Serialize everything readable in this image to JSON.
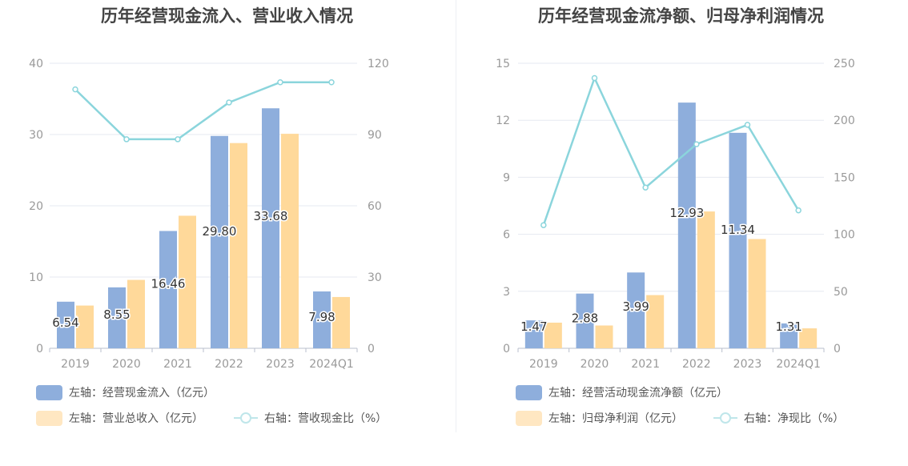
{
  "charts": [
    {
      "title": "历年经营现金流入、营业收入情况",
      "legend": {
        "bar1": "左轴：经营现金流入（亿元）",
        "bar2": "左轴：营业总收入（亿元）",
        "line": "右轴：营收现金比（%）"
      }
    },
    {
      "title": "历年经营现金流净额、归母净利润情况",
      "legend": {
        "bar1": "左轴：经营活动现金流净额（亿元）",
        "bar2": "左轴：归母净利润（亿元）",
        "line": "右轴：净现比（%）"
      }
    }
  ],
  "colors": {
    "bar1": "#8eaedc",
    "bar2": "#ffd99a",
    "line": "#8bd5dc",
    "grid": "#e6e9f0",
    "axis_text": "#999999"
  },
  "chart_data": [
    {
      "type": "bar",
      "title": "历年经营现金流入、营业收入情况",
      "categories": [
        "2019",
        "2020",
        "2021",
        "2022",
        "2023",
        "2024Q1"
      ],
      "series": [
        {
          "name": "左轴：经营现金流入（亿元）",
          "axis": "left",
          "kind": "bar",
          "values": [
            6.54,
            8.55,
            16.46,
            29.8,
            33.68,
            7.98
          ],
          "labels": [
            "6.54",
            "8.55",
            "16.46",
            "29.80",
            "33.68",
            "7.98"
          ]
        },
        {
          "name": "左轴：营业总收入（亿元）",
          "axis": "left",
          "kind": "bar",
          "values": [
            6.0,
            9.6,
            18.6,
            28.8,
            30.1,
            7.2
          ]
        },
        {
          "name": "右轴：营收现金比（%）",
          "axis": "right",
          "kind": "line",
          "values": [
            109,
            88,
            88,
            103.5,
            112,
            112
          ]
        }
      ],
      "left_axis": {
        "min": 0,
        "max": 40,
        "ticks": [
          0,
          10,
          20,
          30,
          40
        ]
      },
      "right_axis": {
        "min": 0,
        "max": 120,
        "ticks": [
          0,
          30,
          60,
          90,
          120
        ]
      },
      "grid": true,
      "legend_position": "bottom-left"
    },
    {
      "type": "bar",
      "title": "历年经营现金流净额、归母净利润情况",
      "categories": [
        "2019",
        "2020",
        "2021",
        "2022",
        "2023",
        "2024Q1"
      ],
      "series": [
        {
          "name": "左轴：经营活动现金流净额（亿元）",
          "axis": "left",
          "kind": "bar",
          "values": [
            1.47,
            2.88,
            3.99,
            12.93,
            11.34,
            1.31
          ],
          "labels": [
            "1.47",
            "2.88",
            "3.99",
            "12.93",
            "11.34",
            "1.31"
          ]
        },
        {
          "name": "左轴：归母净利润（亿元）",
          "axis": "left",
          "kind": "bar",
          "values": [
            1.35,
            1.2,
            2.8,
            7.2,
            5.75,
            1.05
          ]
        },
        {
          "name": "右轴：净现比（%）",
          "axis": "right",
          "kind": "line",
          "values": [
            108,
            237,
            141,
            179,
            196,
            121
          ]
        }
      ],
      "left_axis": {
        "min": 0,
        "max": 15,
        "ticks": [
          0,
          3,
          6,
          9,
          12,
          15
        ]
      },
      "right_axis": {
        "min": 0,
        "max": 250,
        "ticks": [
          0,
          50,
          100,
          150,
          200,
          250
        ]
      },
      "grid": true,
      "legend_position": "bottom-left"
    }
  ]
}
